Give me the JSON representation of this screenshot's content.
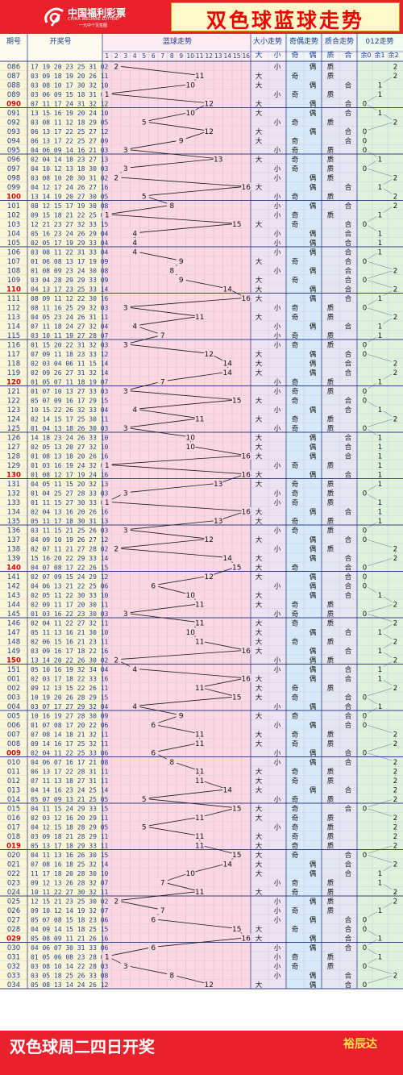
{
  "header": {
    "logo_cn": "中国福利彩票",
    "logo_en": "CHINA WELFARE LOTTERY",
    "logo_sub": "一元中个见签图",
    "title": "双色球蓝球走势"
  },
  "columns": {
    "period": "期号",
    "draw": "开奖号",
    "blue": "蓝球走势",
    "bigsmall": "大小走势",
    "oddeven": "奇偶走势",
    "primecomp": "质合走势",
    "mod3": "012走势",
    "sub_big": "大",
    "sub_small": "小",
    "sub_odd": "奇",
    "sub_even": "偶",
    "sub_prime": "质",
    "sub_comp": "合",
    "sub_r0": "余0",
    "sub_r1": "余1",
    "sub_r2": "余2"
  },
  "footer": {
    "left": "双色球周二四日开奖",
    "right": "裕辰达"
  },
  "colors": {
    "brand_red": "#e8212d",
    "blue_zone": "#fbd7e3",
    "bigsmall_zone": "#efe3f3",
    "oddeven_zone": "#d8eaf9",
    "primecomp_zone": "#e5e5f4",
    "mod3_zone": "#dff3dc",
    "period_zone": "#fbf5d8",
    "highlight_text": "#d4000a"
  },
  "chart_data": {
    "type": "table",
    "blue_range": [
      1,
      16
    ],
    "periods": [
      {
        "p": "086",
        "n": "17 19 20 23 25 31",
        "b": 2,
        "bs": "小",
        "oe": "偶",
        "pc": "质",
        "m": 2
      },
      {
        "p": "087",
        "n": "03 09 18 19 20 26",
        "b": 11,
        "bs": "大",
        "oe": "奇",
        "pc": "质",
        "m": 2
      },
      {
        "p": "088",
        "n": "03 08 10 17 30 32",
        "b": 10,
        "bs": "大",
        "oe": "偶",
        "pc": "合",
        "m": 1
      },
      {
        "p": "089",
        "n": "03 06 09 15 18 31",
        "b": 1,
        "bs": "小",
        "oe": "奇",
        "pc": "质",
        "m": 1
      },
      {
        "p": "090",
        "n": "07 11 17 24 31 32",
        "b": 12,
        "bs": "大",
        "oe": "偶",
        "pc": "合",
        "m": 0
      },
      {
        "p": "091",
        "n": "13 15 16 19 20 24",
        "b": 10,
        "bs": "大",
        "oe": "偶",
        "pc": "合",
        "m": 1
      },
      {
        "p": "092",
        "n": "03 08 11 12 18 29",
        "b": 5,
        "bs": "小",
        "oe": "奇",
        "pc": "质",
        "m": 2
      },
      {
        "p": "093",
        "n": "06 13 17 22 25 27",
        "b": 12,
        "bs": "大",
        "oe": "偶",
        "pc": "合",
        "m": 0
      },
      {
        "p": "094",
        "n": "06 13 17 22 25 27",
        "b": 9,
        "bs": "大",
        "oe": "奇",
        "pc": "合",
        "m": 0
      },
      {
        "p": "095",
        "n": "04 06 09 14 16 21",
        "b": 3,
        "bs": "小",
        "oe": "奇",
        "pc": "质",
        "m": 0
      },
      {
        "p": "096",
        "n": "02 04 14 18 23 27",
        "b": 13,
        "bs": "大",
        "oe": "奇",
        "pc": "质",
        "m": 1
      },
      {
        "p": "097",
        "n": "04 10 12 13 18 30",
        "b": 3,
        "bs": "小",
        "oe": "奇",
        "pc": "质",
        "m": 0
      },
      {
        "p": "098",
        "n": "03 08 10 20 30 31",
        "b": 2,
        "bs": "小",
        "oe": "偶",
        "pc": "质",
        "m": 2
      },
      {
        "p": "099",
        "n": "04 12 17 24 26 27",
        "b": 16,
        "bs": "大",
        "oe": "偶",
        "pc": "合",
        "m": 1
      },
      {
        "p": "100",
        "n": "13 14 19 20 27 30",
        "b": 5,
        "bs": "小",
        "oe": "奇",
        "pc": "质",
        "m": 2
      },
      {
        "p": "101",
        "n": "08 12 15 17 19 30",
        "b": 8,
        "bs": "小",
        "oe": "偶",
        "pc": "合",
        "m": 2
      },
      {
        "p": "102",
        "n": "09 15 18 21 22 25",
        "b": 1,
        "bs": "小",
        "oe": "奇",
        "pc": "质",
        "m": 1
      },
      {
        "p": "103",
        "n": "12 21 23 27 32 33",
        "b": 15,
        "bs": "大",
        "oe": "奇",
        "pc": "合",
        "m": 0
      },
      {
        "p": "104",
        "n": "05 16 23 24 26 29",
        "b": 4,
        "bs": "小",
        "oe": "偶",
        "pc": "合",
        "m": 1
      },
      {
        "p": "105",
        "n": "02 05 17 19 29 33",
        "b": 4,
        "bs": "小",
        "oe": "偶",
        "pc": "合",
        "m": 1
      },
      {
        "p": "106",
        "n": "03 08 11 22 31 33",
        "b": 4,
        "bs": "小",
        "oe": "偶",
        "pc": "合",
        "m": 1
      },
      {
        "p": "107",
        "n": "01 06 08 13 17 19",
        "b": 9,
        "bs": "大",
        "oe": "奇",
        "pc": "合",
        "m": 0
      },
      {
        "p": "108",
        "n": "01 08 09 23 24 30",
        "b": 8,
        "bs": "小",
        "oe": "偶",
        "pc": "合",
        "m": 2
      },
      {
        "p": "109",
        "n": "03 04 28 29 29 33",
        "b": 9,
        "bs": "大",
        "oe": "奇",
        "pc": "合",
        "m": 0
      },
      {
        "p": "110",
        "n": "04 13 17 23 25 33",
        "b": 14,
        "bs": "大",
        "oe": "偶",
        "pc": "合",
        "m": 2
      },
      {
        "p": "111",
        "n": "08 09 11 12 22 30",
        "b": 16,
        "bs": "大",
        "oe": "偶",
        "pc": "合",
        "m": 1
      },
      {
        "p": "112",
        "n": "08 11 16 25 29 32",
        "b": 3,
        "bs": "小",
        "oe": "奇",
        "pc": "质",
        "m": 0
      },
      {
        "p": "113",
        "n": "04 05 23 24 26 31",
        "b": 11,
        "bs": "大",
        "oe": "奇",
        "pc": "质",
        "m": 2
      },
      {
        "p": "114",
        "n": "07 11 18 24 27 32",
        "b": 4,
        "bs": "小",
        "oe": "偶",
        "pc": "合",
        "m": 1
      },
      {
        "p": "115",
        "n": "03 10 11 19 27 28",
        "b": 7,
        "bs": "小",
        "oe": "奇",
        "pc": "质",
        "m": 1
      },
      {
        "p": "116",
        "n": "01 15 20 22 31 32",
        "b": 3,
        "bs": "小",
        "oe": "奇",
        "pc": "质",
        "m": 0
      },
      {
        "p": "117",
        "n": "07 09 11 18 23 33",
        "b": 12,
        "bs": "大",
        "oe": "偶",
        "pc": "合",
        "m": 0
      },
      {
        "p": "118",
        "n": "02 03 04 06 11 15",
        "b": 14,
        "bs": "大",
        "oe": "偶",
        "pc": "合",
        "m": 2
      },
      {
        "p": "119",
        "n": "02 09 26 27 31 32",
        "b": 14,
        "bs": "大",
        "oe": "偶",
        "pc": "合",
        "m": 2
      },
      {
        "p": "120",
        "n": "01 05 07 11 18 19",
        "b": 7,
        "bs": "小",
        "oe": "奇",
        "pc": "质",
        "m": 1
      },
      {
        "p": "121",
        "n": "01 07 10 13 27 33",
        "b": 3,
        "bs": "小",
        "oe": "奇",
        "pc": "质",
        "m": 0
      },
      {
        "p": "122",
        "n": "05 07 09 16 17 29",
        "b": 15,
        "bs": "大",
        "oe": "奇",
        "pc": "合",
        "m": 0
      },
      {
        "p": "123",
        "n": "10 15 22 26 32 33",
        "b": 4,
        "bs": "小",
        "oe": "偶",
        "pc": "合",
        "m": 1
      },
      {
        "p": "124",
        "n": "02 14 15 17 25 30",
        "b": 11,
        "bs": "大",
        "oe": "奇",
        "pc": "质",
        "m": 2
      },
      {
        "p": "125",
        "n": "01 04 13 18 26 30",
        "b": 3,
        "bs": "小",
        "oe": "奇",
        "pc": "质",
        "m": 0
      },
      {
        "p": "126",
        "n": "14 18 23 24 26 33",
        "b": 10,
        "bs": "大",
        "oe": "偶",
        "pc": "合",
        "m": 1
      },
      {
        "p": "127",
        "n": "02 05 13 20 27 32",
        "b": 10,
        "bs": "大",
        "oe": "偶",
        "pc": "合",
        "m": 1
      },
      {
        "p": "128",
        "n": "01 08 13 18 20 26",
        "b": 16,
        "bs": "大",
        "oe": "偶",
        "pc": "合",
        "m": 1
      },
      {
        "p": "129",
        "n": "01 03 16 19 24 32",
        "b": 1,
        "bs": "小",
        "oe": "奇",
        "pc": "质",
        "m": 1
      },
      {
        "p": "130",
        "n": "01 08 12 17 19 24",
        "b": 16,
        "bs": "大",
        "oe": "偶",
        "pc": "合",
        "m": 1
      },
      {
        "p": "131",
        "n": "04 05 11 15 20 32",
        "b": 13,
        "bs": "大",
        "oe": "奇",
        "pc": "质",
        "m": 1
      },
      {
        "p": "132",
        "n": "01 04 25 27 28 33",
        "b": 3,
        "bs": "小",
        "oe": "奇",
        "pc": "质",
        "m": 0
      },
      {
        "p": "133",
        "n": "01 11 15 27 30 33",
        "b": 1,
        "bs": "小",
        "oe": "奇",
        "pc": "质",
        "m": 1
      },
      {
        "p": "134",
        "n": "02 04 13 16 20 26",
        "b": 16,
        "bs": "大",
        "oe": "偶",
        "pc": "合",
        "m": 1
      },
      {
        "p": "135",
        "n": "05 11 17 18 30 31",
        "b": 13,
        "bs": "大",
        "oe": "奇",
        "pc": "质",
        "m": 1
      },
      {
        "p": "136",
        "n": "03 11 15 21 25 26",
        "b": 3,
        "bs": "小",
        "oe": "奇",
        "pc": "质",
        "m": 0
      },
      {
        "p": "137",
        "n": "04 09 10 19 26 27",
        "b": 12,
        "bs": "大",
        "oe": "偶",
        "pc": "合",
        "m": 0
      },
      {
        "p": "138",
        "n": "02 07 11 21 27 28",
        "b": 2,
        "bs": "小",
        "oe": "偶",
        "pc": "质",
        "m": 2
      },
      {
        "p": "139",
        "n": "15 16 20 22 29 33",
        "b": 14,
        "bs": "大",
        "oe": "偶",
        "pc": "合",
        "m": 2
      },
      {
        "p": "140",
        "n": "04 07 08 17 22 26",
        "b": 15,
        "bs": "大",
        "oe": "奇",
        "pc": "合",
        "m": 0
      },
      {
        "p": "141",
        "n": "02 07 09 15 24 29",
        "b": 12,
        "bs": "大",
        "oe": "偶",
        "pc": "合",
        "m": 0
      },
      {
        "p": "142",
        "n": "04 06 13 21 22 25",
        "b": 6,
        "bs": "小",
        "oe": "偶",
        "pc": "合",
        "m": 0
      },
      {
        "p": "143",
        "n": "02 05 11 22 30 33",
        "b": 10,
        "bs": "大",
        "oe": "偶",
        "pc": "合",
        "m": 1
      },
      {
        "p": "144",
        "n": "02 09 11 17 20 30",
        "b": 11,
        "bs": "大",
        "oe": "奇",
        "pc": "质",
        "m": 2
      },
      {
        "p": "145",
        "n": "01 03 16 22 23 30",
        "b": 3,
        "bs": "小",
        "oe": "奇",
        "pc": "质",
        "m": 0
      },
      {
        "p": "146",
        "n": "02 04 11 22 27 32",
        "b": 11,
        "bs": "大",
        "oe": "奇",
        "pc": "质",
        "m": 2
      },
      {
        "p": "147",
        "n": "05 11 13 16 21 30",
        "b": 10,
        "bs": "大",
        "oe": "偶",
        "pc": "合",
        "m": 1
      },
      {
        "p": "148",
        "n": "02 06 15 16 21 23",
        "b": 11,
        "bs": "大",
        "oe": "奇",
        "pc": "质",
        "m": 2
      },
      {
        "p": "149",
        "n": "03 09 16 17 18 22",
        "b": 16,
        "bs": "大",
        "oe": "偶",
        "pc": "合",
        "m": 1
      },
      {
        "p": "150",
        "n": "13 14 20 22 26 30",
        "b": 2,
        "bs": "小",
        "oe": "偶",
        "pc": "质",
        "m": 2
      },
      {
        "p": "151",
        "n": "05 10 16 19 32 34",
        "b": 4,
        "bs": "小",
        "oe": "偶",
        "pc": "合",
        "m": 1
      },
      {
        "p": "001",
        "n": "02 03 17 18 22 33",
        "b": 16,
        "bs": "大",
        "oe": "偶",
        "pc": "合",
        "m": 1
      },
      {
        "p": "002",
        "n": "09 12 13 15 22 26",
        "b": 11,
        "bs": "大",
        "oe": "奇",
        "pc": "质",
        "m": 2
      },
      {
        "p": "003",
        "n": "10 19 20 26 28 29",
        "b": 15,
        "bs": "大",
        "oe": "奇",
        "pc": "合",
        "m": 0
      },
      {
        "p": "004",
        "n": "03 07 17 27 29 32",
        "b": 4,
        "bs": "小",
        "oe": "偶",
        "pc": "合",
        "m": 1
      },
      {
        "p": "005",
        "n": "10 16 19 27 28 30",
        "b": 9,
        "bs": "大",
        "oe": "奇",
        "pc": "合",
        "m": 0
      },
      {
        "p": "006",
        "n": "01 07 08 17 20 22",
        "b": 6,
        "bs": "小",
        "oe": "偶",
        "pc": "合",
        "m": 0
      },
      {
        "p": "007",
        "n": "07 08 14 18 21 32",
        "b": 11,
        "bs": "大",
        "oe": "奇",
        "pc": "质",
        "m": 2
      },
      {
        "p": "008",
        "n": "09 14 16 17 25 32",
        "b": 11,
        "bs": "大",
        "oe": "奇",
        "pc": "质",
        "m": 2
      },
      {
        "p": "009",
        "n": "02 04 11 22 25 33",
        "b": 6,
        "bs": "小",
        "oe": "偶",
        "pc": "合",
        "m": 0
      },
      {
        "p": "010",
        "n": "04 06 07 16 17 21",
        "b": 8,
        "bs": "小",
        "oe": "偶",
        "pc": "合",
        "m": 2
      },
      {
        "p": "011",
        "n": "06 13 17 22 28 31",
        "b": 11,
        "bs": "大",
        "oe": "奇",
        "pc": "质",
        "m": 2
      },
      {
        "p": "012",
        "n": "07 11 13 18 27 31",
        "b": 11,
        "bs": "大",
        "oe": "奇",
        "pc": "质",
        "m": 2
      },
      {
        "p": "013",
        "n": "04 14 16 23 24 25",
        "b": 14,
        "bs": "大",
        "oe": "偶",
        "pc": "合",
        "m": 2
      },
      {
        "p": "014",
        "n": "05 07 09 13 21 25",
        "b": 5,
        "bs": "小",
        "oe": "奇",
        "pc": "质",
        "m": 2
      },
      {
        "p": "015",
        "n": "04 11 15 24 29 33",
        "b": 15,
        "bs": "大",
        "oe": "奇",
        "pc": "合",
        "m": 0
      },
      {
        "p": "016",
        "n": "02 03 12 16 20 29",
        "b": 11,
        "bs": "大",
        "oe": "奇",
        "pc": "质",
        "m": 2
      },
      {
        "p": "017",
        "n": "04 12 15 18 28 29",
        "b": 5,
        "bs": "小",
        "oe": "奇",
        "pc": "质",
        "m": 2
      },
      {
        "p": "018",
        "n": "03 09 18 21 28 29",
        "b": 11,
        "bs": "大",
        "oe": "奇",
        "pc": "质",
        "m": 2
      },
      {
        "p": "019",
        "n": "05 13 17 18 29 33",
        "b": 11,
        "bs": "大",
        "oe": "奇",
        "pc": "质",
        "m": 2
      },
      {
        "p": "020",
        "n": "04 11 13 16 26 30",
        "b": 15,
        "bs": "大",
        "oe": "奇",
        "pc": "合",
        "m": 0
      },
      {
        "p": "021",
        "n": "07 08 16 18 25 32",
        "b": 14,
        "bs": "大",
        "oe": "偶",
        "pc": "合",
        "m": 2
      },
      {
        "p": "022",
        "n": "11 17 18 20 28 30",
        "b": 10,
        "bs": "大",
        "oe": "偶",
        "pc": "合",
        "m": 1
      },
      {
        "p": "023",
        "n": "09 12 13 26 28 32",
        "b": 7,
        "bs": "小",
        "oe": "奇",
        "pc": "质",
        "m": 1
      },
      {
        "p": "024",
        "n": "10 11 22 27 30 32",
        "b": 11,
        "bs": "大",
        "oe": "奇",
        "pc": "质",
        "m": 2
      },
      {
        "p": "025",
        "n": "12 15 21 23 25 30",
        "b": 2,
        "bs": "小",
        "oe": "偶",
        "pc": "质",
        "m": 2
      },
      {
        "p": "026",
        "n": "09 10 12 14 19 32",
        "b": 7,
        "bs": "小",
        "oe": "奇",
        "pc": "质",
        "m": 1
      },
      {
        "p": "027",
        "n": "05 07 08 15 18 23",
        "b": 6,
        "bs": "小",
        "oe": "偶",
        "pc": "合",
        "m": 0
      },
      {
        "p": "028",
        "n": "04 09 14 15 18 25",
        "b": 15,
        "bs": "大",
        "oe": "奇",
        "pc": "合",
        "m": 0
      },
      {
        "p": "029",
        "n": "05 08 09 11 21 26",
        "b": 16,
        "bs": "大",
        "oe": "偶",
        "pc": "合",
        "m": 1
      },
      {
        "p": "030",
        "n": "04 06 07 30 31 33",
        "b": 6,
        "bs": "小",
        "oe": "偶",
        "pc": "合",
        "m": 0
      },
      {
        "p": "031",
        "n": "01 05 06 08 23 28",
        "b": 1,
        "bs": "小",
        "oe": "奇",
        "pc": "质",
        "m": 1
      },
      {
        "p": "032",
        "n": "03 08 10 14 22 28",
        "b": 3,
        "bs": "小",
        "oe": "奇",
        "pc": "质",
        "m": 0
      },
      {
        "p": "033",
        "n": "03 05 18 25 26 33",
        "b": 8,
        "bs": "小",
        "oe": "偶",
        "pc": "合",
        "m": 2
      },
      {
        "p": "034",
        "n": "05 08 13 14 24 26",
        "b": 12,
        "bs": "大",
        "oe": "偶",
        "pc": "合",
        "m": 0
      }
    ]
  }
}
